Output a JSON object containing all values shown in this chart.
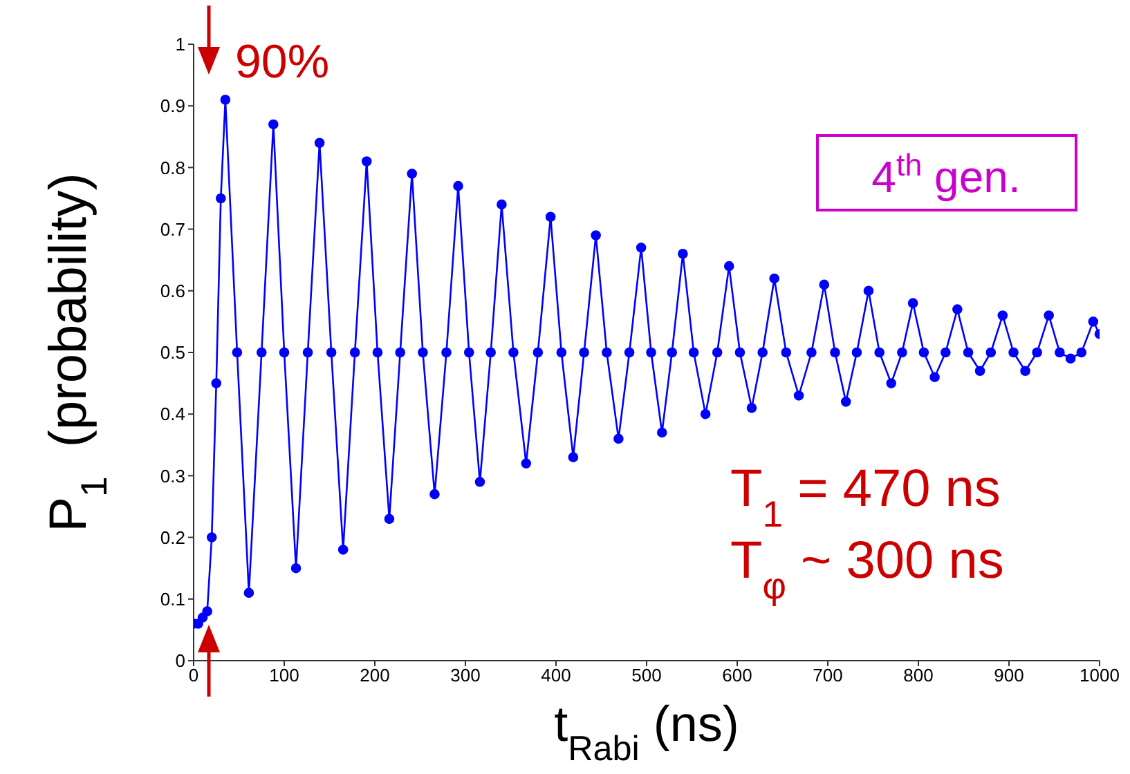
{
  "chart_data": {
    "type": "line",
    "xlabel": "t$_{Rabi}$ (ns)",
    "ylabel": "P$_{1}$  (probability)",
    "xlim": [
      0,
      1000
    ],
    "xticks": [
      0,
      100,
      200,
      300,
      400,
      500,
      600,
      700,
      800,
      900,
      1000
    ],
    "ylim": [
      0,
      1
    ],
    "yticks": [
      0,
      0.1,
      0.2,
      0.3,
      0.4,
      0.5,
      0.6,
      0.7,
      0.8,
      0.9,
      1
    ],
    "grid": false,
    "marker": "circle",
    "line_style": "solid",
    "annotations": [
      "90%",
      "4$^{th}$ gen.",
      "T$_{1}$ = 470 ns",
      "T$_{φ}$ ~ 300 ns"
    ],
    "series": [
      {
        "color": "#0000ff",
        "x": [
          0,
          5,
          10,
          15,
          20,
          25,
          30,
          35,
          48,
          61,
          75,
          88,
          100,
          113,
          126,
          139,
          152,
          165,
          178,
          191,
          203,
          216,
          228,
          241,
          253,
          266,
          279,
          292,
          304,
          316,
          328,
          340,
          353,
          367,
          380,
          394,
          406,
          419,
          431,
          444,
          456,
          469,
          481,
          494,
          505,
          517,
          528,
          540,
          552,
          565,
          578,
          591,
          603,
          616,
          628,
          641,
          654,
          668,
          682,
          696,
          708,
          720,
          732,
          745,
          757,
          770,
          782,
          794,
          806,
          818,
          830,
          843,
          855,
          868,
          880,
          893,
          905,
          918,
          931,
          944,
          956,
          968,
          980,
          993,
          1000
        ],
        "values": [
          0.06,
          0.06,
          0.07,
          0.08,
          0.2,
          0.45,
          0.75,
          0.91,
          0.5,
          0.11,
          0.5,
          0.87,
          0.5,
          0.15,
          0.5,
          0.84,
          0.5,
          0.18,
          0.5,
          0.81,
          0.5,
          0.23,
          0.5,
          0.79,
          0.5,
          0.27,
          0.5,
          0.77,
          0.5,
          0.29,
          0.5,
          0.74,
          0.5,
          0.32,
          0.5,
          0.72,
          0.5,
          0.33,
          0.5,
          0.69,
          0.5,
          0.36,
          0.5,
          0.67,
          0.5,
          0.37,
          0.5,
          0.66,
          0.5,
          0.4,
          0.5,
          0.64,
          0.5,
          0.41,
          0.5,
          0.62,
          0.5,
          0.43,
          0.5,
          0.61,
          0.5,
          0.42,
          0.5,
          0.6,
          0.5,
          0.45,
          0.5,
          0.58,
          0.5,
          0.46,
          0.5,
          0.57,
          0.5,
          0.47,
          0.5,
          0.56,
          0.5,
          0.47,
          0.5,
          0.56,
          0.5,
          0.49,
          0.5,
          0.55,
          0.53
        ]
      }
    ]
  }
}
